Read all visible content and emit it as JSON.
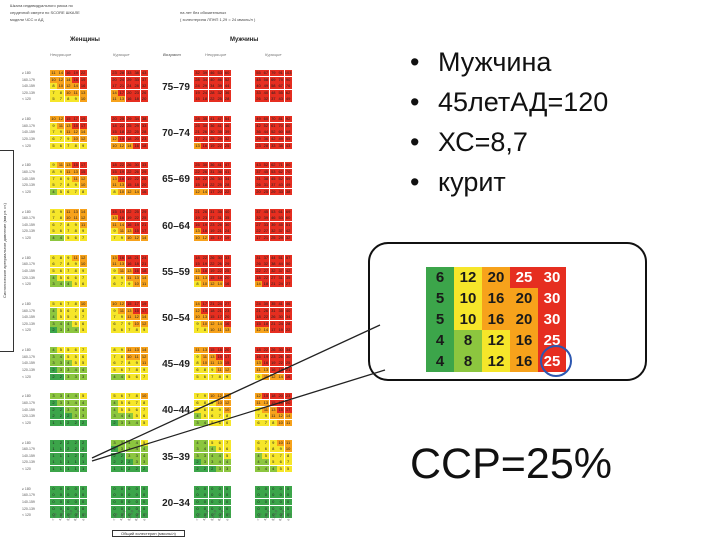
{
  "chart": {
    "header_left_1": "Шкала индивидуального риска по",
    "header_left_2": "сердечной смерти по SCORE ШКАЛЕ",
    "header_left_3": "модели ЧСС и АД",
    "header_right_1": "на лет без обязательных",
    "header_right_2": "( холестерина ЛПНП 1,29 = 24 ммоль/л )",
    "women_label": "Женщины",
    "men_label": "Мужчины",
    "nonsmokers_label_women": "Некурящие",
    "smokers_label_women": "Курящие",
    "age_label": "Возраст",
    "nonsmokers_label_men": "Некурящие",
    "smokers_label_men": "Курящие",
    "vertical_title": "Систолическое артериальное давление (мм рт. ст.)",
    "x_title": "Общий холестерин (ммоль/л)",
    "ages": [
      "75–79",
      "70–74",
      "65–69",
      "60–64",
      "55–59",
      "50–54",
      "45–49",
      "40–44",
      "35–39",
      "20–34"
    ],
    "row_labels": [
      "≥ 180",
      "160-179",
      "140-159",
      "120-139",
      "< 120"
    ],
    "col_labels": [
      "< 4,0",
      "4,0-4,9",
      "5,0-5,9",
      "6,0-6,9",
      "≥ 7,0"
    ]
  },
  "bullets": [
    "Мужчина",
    "45летАД=120",
    "ХС=8,7",
    "курит"
  ],
  "zoom_grid": [
    [
      "6",
      "12",
      "20",
      "25",
      "30"
    ],
    [
      "5",
      "10",
      "16",
      "20",
      "30"
    ],
    [
      "5",
      "10",
      "16",
      "20",
      "30"
    ],
    [
      "4",
      "8",
      "12",
      "16",
      "25"
    ],
    [
      "4",
      "8",
      "12",
      "16",
      "25"
    ]
  ],
  "result": "ССР=25%",
  "colors": {
    "green": "#3ca54a",
    "light_green": "#8cc63f",
    "yellow": "#f6e62a",
    "orange": "#f7a21b",
    "red": "#e62e20",
    "circle": "#2c57b0"
  }
}
